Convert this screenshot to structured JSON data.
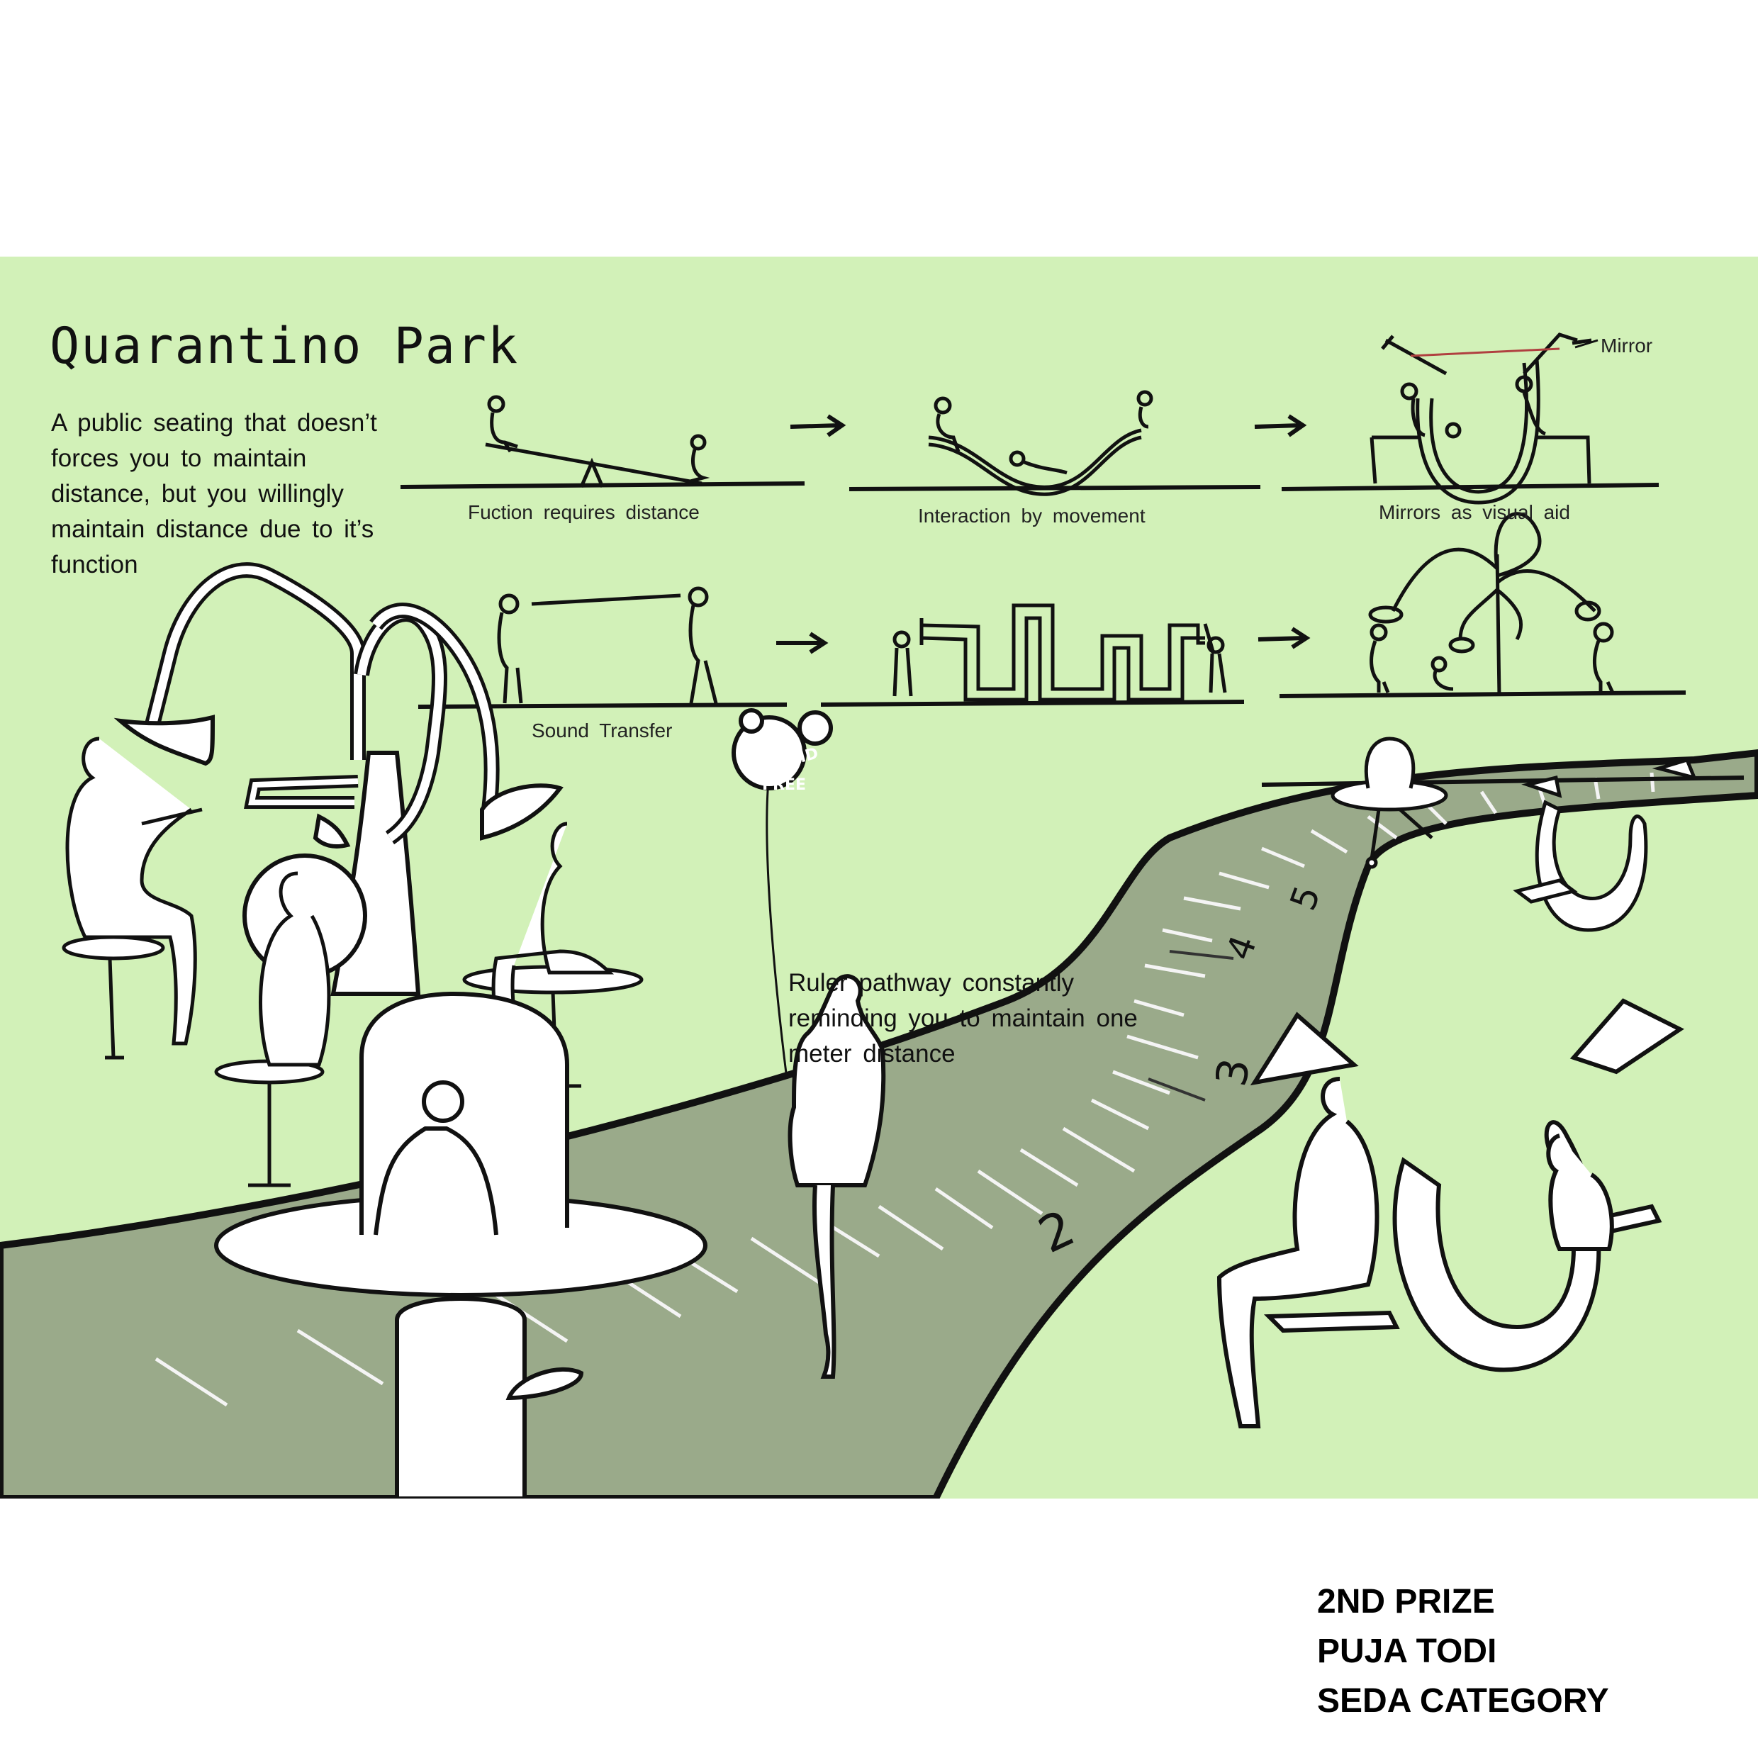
{
  "poster": {
    "title": "Quarantino Park",
    "description": "A public seating that doesn’t forces you to maintain distance, but you willingly maintain distance due to it’s function",
    "background_color": "#d2f1b8",
    "path_color": "#9aaa8a"
  },
  "diagrams": [
    {
      "caption": "Fuction requires distance"
    },
    {
      "caption": "Interaction by movement"
    },
    {
      "caption": "Mirrors as visual aid",
      "callout": "Mirror"
    },
    {
      "caption": "Sound Transfer"
    }
  ],
  "badge": {
    "line1": "COVID",
    "line2": "FREE"
  },
  "ruler_note": "Ruler pathway constantly reminding you to maintain one meter distance",
  "ruler_marks": [
    "2",
    "3",
    "4",
    "5"
  ],
  "credits": {
    "prize": "2ND PRIZE",
    "author": "PUJA TODI",
    "category": "SEDA CATEGORY"
  }
}
